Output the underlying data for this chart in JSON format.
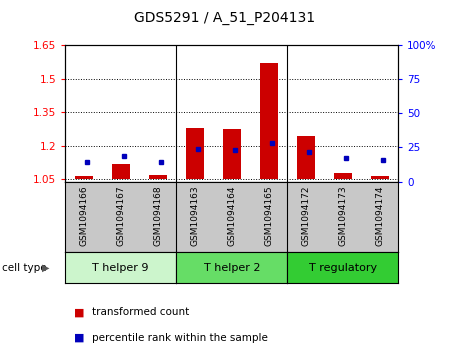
{
  "title": "GDS5291 / A_51_P204131",
  "samples": [
    "GSM1094166",
    "GSM1094167",
    "GSM1094168",
    "GSM1094163",
    "GSM1094164",
    "GSM1094165",
    "GSM1094172",
    "GSM1094173",
    "GSM1094174"
  ],
  "transformed_count": [
    1.065,
    1.12,
    1.07,
    1.28,
    1.275,
    1.57,
    1.245,
    1.08,
    1.065
  ],
  "percentile_rank": [
    14,
    19,
    14,
    24,
    23,
    28,
    22,
    17,
    16
  ],
  "ylim_left": [
    1.04,
    1.65
  ],
  "ylim_right": [
    0,
    100
  ],
  "yticks_left": [
    1.05,
    1.2,
    1.35,
    1.5,
    1.65
  ],
  "yticks_right": [
    0,
    25,
    50,
    75,
    100
  ],
  "ytick_labels_right": [
    "0",
    "25",
    "50",
    "75",
    "100%"
  ],
  "cell_types": [
    {
      "label": "T helper 9",
      "indices": [
        0,
        1,
        2
      ],
      "color": "#ccf5cc"
    },
    {
      "label": "T helper 2",
      "indices": [
        3,
        4,
        5
      ],
      "color": "#66dd66"
    },
    {
      "label": "T regulatory",
      "indices": [
        6,
        7,
        8
      ],
      "color": "#33cc33"
    }
  ],
  "bar_color_red": "#cc0000",
  "dot_color_blue": "#0000bb",
  "bg_color": "#c8c8c8",
  "plot_bg": "#ffffff",
  "cell_type_label": "cell type",
  "legend_items": [
    "transformed count",
    "percentile rank within the sample"
  ],
  "base_count": 1.05,
  "group_dividers": [
    2.5,
    5.5
  ]
}
